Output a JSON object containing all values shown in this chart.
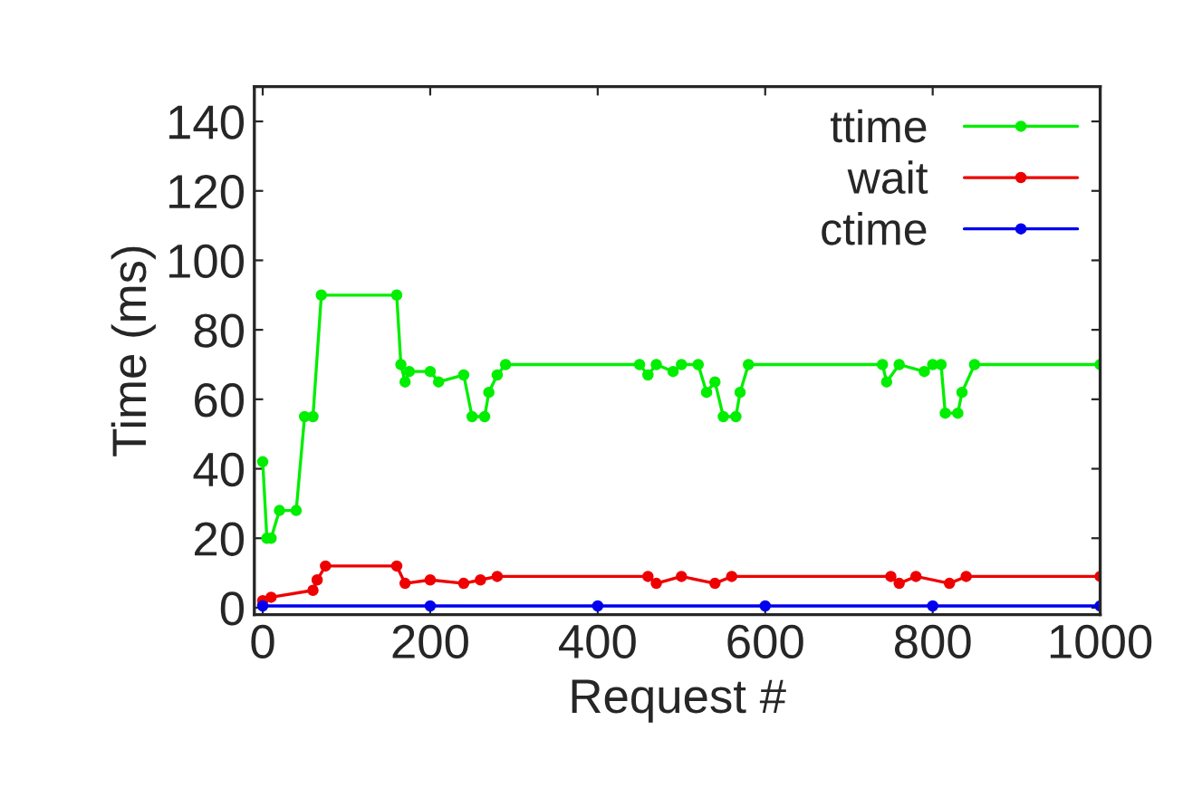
{
  "chart_data": {
    "type": "line",
    "xlabel": "Request #",
    "ylabel": "Time (ms)",
    "xlim": [
      -10,
      1000
    ],
    "xticks": [
      0,
      200,
      400,
      600,
      800,
      1000
    ],
    "ylim": [
      -2,
      150
    ],
    "yticks": [
      0,
      20,
      40,
      60,
      80,
      100,
      120,
      140
    ],
    "grid": false,
    "legend": "top right",
    "marker": "circle",
    "line_style": "solid",
    "series": [
      {
        "name": "ttime",
        "color": "#00ee00",
        "x": [
          0,
          5,
          10,
          20,
          40,
          50,
          60,
          70,
          160,
          165,
          170,
          175,
          200,
          210,
          240,
          250,
          265,
          270,
          280,
          290,
          450,
          460,
          470,
          490,
          500,
          520,
          530,
          540,
          550,
          565,
          570,
          580,
          740,
          745,
          760,
          790,
          800,
          810,
          815,
          830,
          835,
          850,
          1000
        ],
        "values": [
          42,
          20,
          20,
          28,
          28,
          55,
          55,
          90,
          90,
          70,
          65,
          68,
          68,
          65,
          67,
          55,
          55,
          62,
          67,
          70,
          70,
          67,
          70,
          68,
          70,
          70,
          62,
          65,
          55,
          55,
          62,
          70,
          70,
          65,
          70,
          68,
          70,
          70,
          56,
          56,
          62,
          70,
          70
        ]
      },
      {
        "name": "wait",
        "color": "#ee0000",
        "x": [
          0,
          10,
          60,
          65,
          75,
          160,
          170,
          200,
          240,
          260,
          280,
          460,
          470,
          500,
          540,
          560,
          750,
          760,
          780,
          820,
          840,
          1000
        ],
        "values": [
          2,
          3,
          5,
          8,
          12,
          12,
          7,
          8,
          7,
          8,
          9,
          9,
          7,
          9,
          7,
          9,
          9,
          7,
          9,
          7,
          9,
          9
        ]
      },
      {
        "name": "ctime",
        "color": "#0000ee",
        "x": [
          0,
          200,
          400,
          600,
          800,
          1000
        ],
        "values": [
          0.5,
          0.5,
          0.5,
          0.5,
          0.5,
          0.5
        ]
      }
    ]
  }
}
